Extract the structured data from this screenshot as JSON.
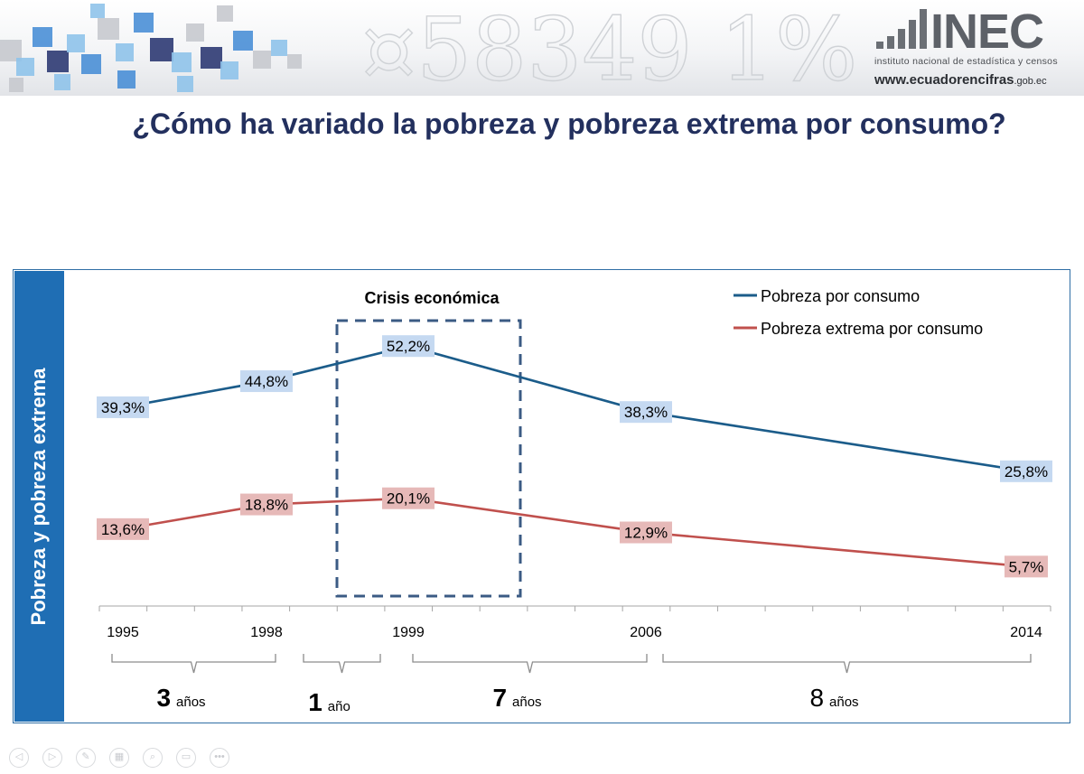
{
  "header": {
    "brand_name": "INEC",
    "brand_subtitle": "instituto nacional de estadística y censos",
    "brand_url_main": "www.ecuadorencifras",
    "brand_url_suffix": ".gob.ec",
    "colors": {
      "cube_dark": "#2e3a73",
      "cube_blue": "#4a8fd6",
      "cube_light": "#8fc3ea",
      "cube_grey": "#c6c9ce"
    }
  },
  "title": "¿Cómo ha variado la pobreza y pobreza extrema por consumo?",
  "side_label": "Pobreza y pobreza extrema",
  "chart_data": {
    "type": "line",
    "categories": [
      "1995",
      "1998",
      "1999",
      "2006",
      "2014"
    ],
    "x": [
      1995,
      1998,
      1999,
      2006,
      2014
    ],
    "series": [
      {
        "name": "Pobreza por consumo",
        "color": "#1b5c8a",
        "label_bg": "#c5d9f1",
        "values": [
          39.3,
          44.8,
          52.2,
          38.3,
          25.8
        ],
        "labels": [
          "39,3%",
          "44,8%",
          "52,2%",
          "38,3%",
          "25,8%"
        ]
      },
      {
        "name": "Pobreza extrema por consumo",
        "color": "#c0504d",
        "label_bg": "#e6b9b8",
        "values": [
          13.6,
          18.8,
          20.1,
          12.9,
          5.7
        ],
        "labels": [
          "13,6%",
          "18,8%",
          "20,1%",
          "12,9%",
          "5,7%"
        ]
      }
    ],
    "annotation": {
      "text": "Crisis económica",
      "x_range": [
        1998,
        2002
      ]
    },
    "intervals": [
      {
        "from": 1995,
        "to": 1998,
        "number": "3",
        "unit": "años"
      },
      {
        "from": 1998,
        "to": 1999,
        "number": "1",
        "unit": "año"
      },
      {
        "from": 1999,
        "to": 2006,
        "number": "7",
        "unit": "años"
      },
      {
        "from": 2006,
        "to": 2014,
        "number": "8",
        "unit": "años"
      }
    ],
    "legend_position": "top-right",
    "ylabel": "Pobreza y pobreza extrema",
    "grid": false
  },
  "toolbar": {
    "items": [
      {
        "name": "previous-slide-button",
        "glyph": "◁"
      },
      {
        "name": "next-slide-button",
        "glyph": "▷"
      },
      {
        "name": "pen-tool-button",
        "glyph": "✎"
      },
      {
        "name": "see-all-slides-button",
        "glyph": "▦"
      },
      {
        "name": "zoom-button",
        "glyph": "⌕"
      },
      {
        "name": "video-button",
        "glyph": "▭"
      },
      {
        "name": "more-options-button",
        "glyph": "•••"
      }
    ]
  }
}
